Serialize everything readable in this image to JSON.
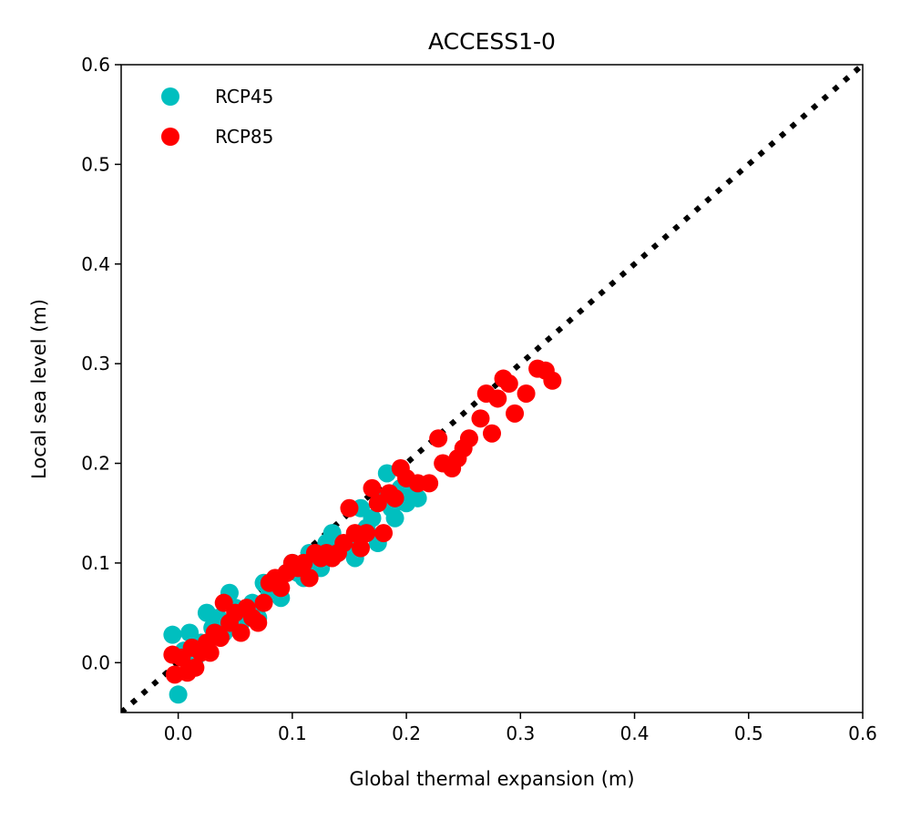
{
  "chart_data": {
    "type": "scatter",
    "title": "ACCESS1-0",
    "xlabel": "Global thermal expansion (m)",
    "ylabel": "Local sea level (m)",
    "xlim": [
      -0.05,
      0.6
    ],
    "ylim": [
      -0.05,
      0.6
    ],
    "xticks": [
      "0.0",
      "0.1",
      "0.2",
      "0.3",
      "0.4",
      "0.5",
      "0.6"
    ],
    "yticks": [
      "0.0",
      "0.1",
      "0.2",
      "0.3",
      "0.4",
      "0.5",
      "0.6"
    ],
    "grid": false,
    "legend_position": "top-left",
    "reference_line": {
      "style": "dotted",
      "color": "#000000",
      "from": [
        -0.05,
        -0.05
      ],
      "to": [
        0.6,
        0.6
      ]
    },
    "series": [
      {
        "name": "RCP45",
        "color": "#00bfbf",
        "points": [
          [
            -0.005,
            0.028
          ],
          [
            0.0,
            -0.032
          ],
          [
            0.005,
            0.012
          ],
          [
            0.01,
            0.03
          ],
          [
            0.015,
            0.005
          ],
          [
            0.02,
            0.02
          ],
          [
            0.025,
            0.05
          ],
          [
            0.03,
            0.035
          ],
          [
            0.035,
            0.045
          ],
          [
            0.04,
            0.03
          ],
          [
            0.045,
            0.07
          ],
          [
            0.05,
            0.055
          ],
          [
            0.055,
            0.04
          ],
          [
            0.06,
            0.05
          ],
          [
            0.065,
            0.06
          ],
          [
            0.07,
            0.045
          ],
          [
            0.075,
            0.08
          ],
          [
            0.08,
            0.07
          ],
          [
            0.085,
            0.08
          ],
          [
            0.09,
            0.065
          ],
          [
            0.095,
            0.09
          ],
          [
            0.1,
            0.1
          ],
          [
            0.105,
            0.09
          ],
          [
            0.11,
            0.085
          ],
          [
            0.115,
            0.11
          ],
          [
            0.12,
            0.1
          ],
          [
            0.125,
            0.095
          ],
          [
            0.13,
            0.12
          ],
          [
            0.135,
            0.13
          ],
          [
            0.14,
            0.11
          ],
          [
            0.145,
            0.115
          ],
          [
            0.15,
            0.12
          ],
          [
            0.155,
            0.105
          ],
          [
            0.16,
            0.155
          ],
          [
            0.165,
            0.135
          ],
          [
            0.17,
            0.145
          ],
          [
            0.175,
            0.12
          ],
          [
            0.18,
            0.165
          ],
          [
            0.183,
            0.19
          ],
          [
            0.187,
            0.155
          ],
          [
            0.19,
            0.145
          ],
          [
            0.195,
            0.175
          ],
          [
            0.2,
            0.16
          ],
          [
            0.205,
            0.17
          ],
          [
            0.21,
            0.165
          ]
        ]
      },
      {
        "name": "RCP85",
        "color": "#ff0000",
        "points": [
          [
            -0.005,
            0.008
          ],
          [
            -0.003,
            -0.012
          ],
          [
            0.003,
            0.005
          ],
          [
            0.008,
            -0.01
          ],
          [
            0.012,
            0.015
          ],
          [
            0.015,
            -0.005
          ],
          [
            0.02,
            0.01
          ],
          [
            0.025,
            0.02
          ],
          [
            0.028,
            0.01
          ],
          [
            0.032,
            0.03
          ],
          [
            0.037,
            0.025
          ],
          [
            0.04,
            0.06
          ],
          [
            0.045,
            0.04
          ],
          [
            0.05,
            0.05
          ],
          [
            0.055,
            0.03
          ],
          [
            0.06,
            0.055
          ],
          [
            0.065,
            0.045
          ],
          [
            0.07,
            0.04
          ],
          [
            0.075,
            0.06
          ],
          [
            0.08,
            0.08
          ],
          [
            0.085,
            0.085
          ],
          [
            0.09,
            0.075
          ],
          [
            0.095,
            0.09
          ],
          [
            0.1,
            0.1
          ],
          [
            0.105,
            0.095
          ],
          [
            0.11,
            0.1
          ],
          [
            0.115,
            0.085
          ],
          [
            0.12,
            0.11
          ],
          [
            0.125,
            0.105
          ],
          [
            0.13,
            0.11
          ],
          [
            0.135,
            0.105
          ],
          [
            0.14,
            0.11
          ],
          [
            0.145,
            0.12
          ],
          [
            0.15,
            0.155
          ],
          [
            0.155,
            0.13
          ],
          [
            0.16,
            0.115
          ],
          [
            0.165,
            0.13
          ],
          [
            0.17,
            0.175
          ],
          [
            0.175,
            0.16
          ],
          [
            0.18,
            0.13
          ],
          [
            0.185,
            0.17
          ],
          [
            0.19,
            0.165
          ],
          [
            0.195,
            0.195
          ],
          [
            0.2,
            0.185
          ],
          [
            0.21,
            0.18
          ],
          [
            0.22,
            0.18
          ],
          [
            0.228,
            0.225
          ],
          [
            0.232,
            0.2
          ],
          [
            0.24,
            0.195
          ],
          [
            0.245,
            0.205
          ],
          [
            0.25,
            0.215
          ],
          [
            0.255,
            0.225
          ],
          [
            0.265,
            0.245
          ],
          [
            0.27,
            0.27
          ],
          [
            0.275,
            0.23
          ],
          [
            0.28,
            0.265
          ],
          [
            0.285,
            0.285
          ],
          [
            0.29,
            0.28
          ],
          [
            0.295,
            0.25
          ],
          [
            0.305,
            0.27
          ],
          [
            0.315,
            0.295
          ],
          [
            0.322,
            0.293
          ],
          [
            0.328,
            0.283
          ]
        ]
      }
    ]
  }
}
